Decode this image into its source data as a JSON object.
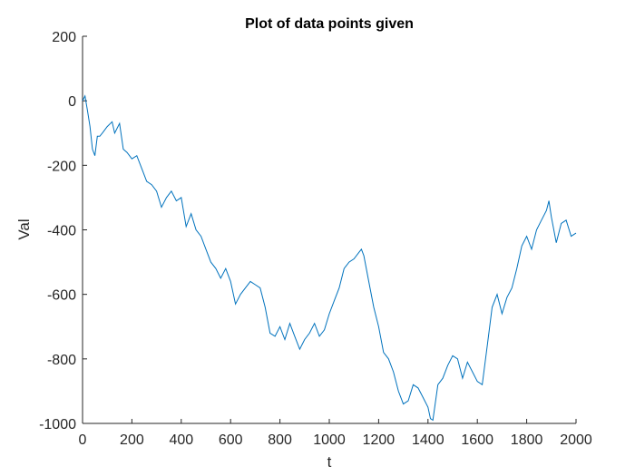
{
  "chart_data": {
    "type": "line",
    "title": "Plot of data points given",
    "xlabel": "t",
    "ylabel": "Val",
    "xlim": [
      0,
      2000
    ],
    "ylim": [
      -1000,
      200
    ],
    "xticks": [
      0,
      200,
      400,
      600,
      800,
      1000,
      1200,
      1400,
      1600,
      1800,
      2000
    ],
    "yticks": [
      -1000,
      -800,
      -600,
      -400,
      -200,
      0,
      200
    ],
    "grid": false,
    "line_color": "#0072BD",
    "series": [
      {
        "x": [
          0,
          10,
          20,
          30,
          40,
          50,
          60,
          70,
          80,
          100,
          120,
          130,
          150,
          165,
          180,
          200,
          220,
          240,
          260,
          280,
          300,
          320,
          340,
          360,
          380,
          400,
          420,
          440,
          460,
          480,
          500,
          520,
          540,
          560,
          580,
          600,
          620,
          640,
          660,
          680,
          700,
          720,
          740,
          760,
          780,
          800,
          820,
          840,
          860,
          880,
          900,
          920,
          940,
          960,
          980,
          1000,
          1020,
          1040,
          1060,
          1080,
          1100,
          1120,
          1130,
          1140,
          1160,
          1180,
          1200,
          1220,
          1240,
          1260,
          1280,
          1300,
          1320,
          1340,
          1360,
          1380,
          1400,
          1410,
          1420,
          1440,
          1460,
          1480,
          1500,
          1520,
          1540,
          1560,
          1580,
          1600,
          1620,
          1640,
          1660,
          1680,
          1700,
          1720,
          1740,
          1760,
          1780,
          1800,
          1820,
          1840,
          1860,
          1880,
          1890,
          1900,
          1920,
          1940,
          1960,
          1980,
          2000
        ],
        "y": [
          0,
          15,
          -30,
          -80,
          -150,
          -170,
          -110,
          -110,
          -100,
          -80,
          -65,
          -100,
          -70,
          -150,
          -160,
          -180,
          -170,
          -210,
          -250,
          -260,
          -280,
          -330,
          -300,
          -280,
          -310,
          -300,
          -390,
          -350,
          -400,
          -420,
          -460,
          -500,
          -520,
          -550,
          -520,
          -560,
          -630,
          -600,
          -580,
          -560,
          -570,
          -580,
          -640,
          -720,
          -730,
          -700,
          -740,
          -690,
          -730,
          -770,
          -740,
          -720,
          -690,
          -730,
          -710,
          -660,
          -620,
          -580,
          -520,
          -500,
          -490,
          -470,
          -460,
          -480,
          -560,
          -640,
          -700,
          -780,
          -800,
          -840,
          -900,
          -940,
          -930,
          -880,
          -890,
          -920,
          -950,
          -985,
          -990,
          -880,
          -860,
          -820,
          -790,
          -800,
          -860,
          -810,
          -840,
          -870,
          -880,
          -760,
          -640,
          -600,
          -660,
          -610,
          -580,
          -520,
          -450,
          -420,
          -460,
          -400,
          -370,
          -340,
          -310,
          -360,
          -440,
          -380,
          -370,
          -420,
          -410
        ]
      }
    ]
  }
}
